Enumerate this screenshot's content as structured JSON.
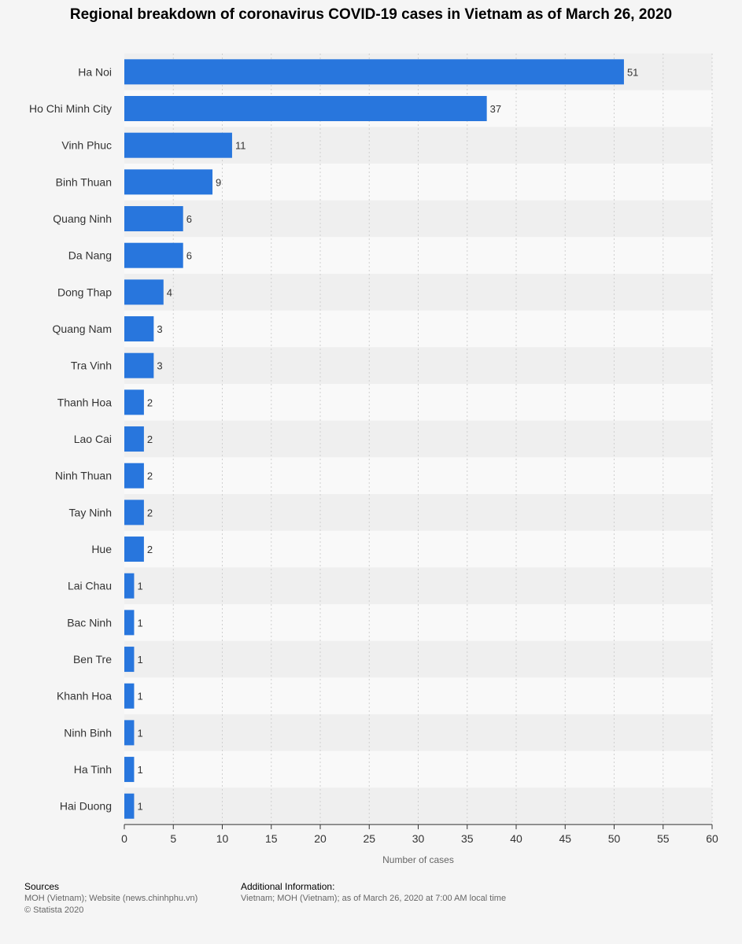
{
  "title": "Regional breakdown of coronavirus COVID-19 cases in Vietnam as of March 26, 2020",
  "chart_data": {
    "type": "bar",
    "orientation": "horizontal",
    "categories": [
      "Ha Noi",
      "Ho Chi Minh City",
      "Vinh Phuc",
      "Binh Thuan",
      "Quang Ninh",
      "Da Nang",
      "Dong Thap",
      "Quang Nam",
      "Tra Vinh",
      "Thanh Hoa",
      "Lao Cai",
      "Ninh Thuan",
      "Tay Ninh",
      "Hue",
      "Lai Chau",
      "Bac Ninh",
      "Ben Tre",
      "Khanh Hoa",
      "Ninh Binh",
      "Ha Tinh",
      "Hai Duong"
    ],
    "values": [
      51,
      37,
      11,
      9,
      6,
      6,
      4,
      3,
      3,
      2,
      2,
      2,
      2,
      2,
      1,
      1,
      1,
      1,
      1,
      1,
      1
    ],
    "xlabel": "Number of cases",
    "ylabel": "",
    "xlim": [
      0,
      60
    ],
    "xticks": [
      0,
      5,
      10,
      15,
      20,
      25,
      30,
      35,
      40,
      45,
      50,
      55,
      60
    ],
    "grid": "vertical",
    "bar_color": "#2876dd",
    "data_labels": true
  },
  "footer": {
    "sources_heading": "Sources",
    "sources_text": "MOH (Vietnam); Website (news.chinhphu.vn)",
    "copyright": "© Statista 2020",
    "info_heading": "Additional Information:",
    "info_text": "Vietnam; MOH (Vietnam); as of March 26, 2020 at 7:00 AM local time"
  }
}
